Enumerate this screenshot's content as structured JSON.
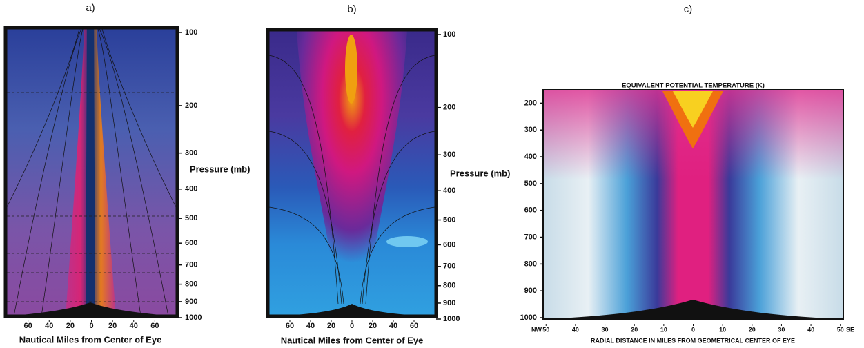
{
  "chart_data": [
    {
      "type": "contour",
      "panel_label": "a)",
      "x_label": "Nautical Miles from Center of Eye",
      "y_label": "Pressure (mb)",
      "xlim": [
        -80,
        80
      ],
      "xticks": [
        {
          "value": -60,
          "label": "60"
        },
        {
          "value": -40,
          "label": "40"
        },
        {
          "value": -20,
          "label": "20"
        },
        0,
        20,
        40,
        60
      ],
      "ylim": [
        1000,
        100
      ],
      "yticks": [
        100,
        200,
        300,
        400,
        500,
        600,
        700,
        800,
        900,
        1000
      ]
    },
    {
      "type": "contour",
      "panel_label": "b)",
      "x_label": "Nautical Miles from Center of Eye",
      "y_label": "Pressure (mb)",
      "xlim": [
        -80,
        80
      ],
      "xticks": [
        {
          "value": -60,
          "label": "60"
        },
        {
          "value": -40,
          "label": "40"
        },
        {
          "value": -20,
          "label": "20"
        },
        0,
        20,
        40,
        60
      ],
      "ylim": [
        1000,
        100
      ],
      "yticks": [
        100,
        200,
        300,
        400,
        500,
        600,
        700,
        800,
        900,
        1000
      ]
    },
    {
      "type": "contour",
      "panel_label": "c)",
      "title": "EQUIVALENT POTENTIAL TEMPERATURE (K)",
      "x_label": "RADIAL DISTANCE IN MILES FROM GEOMETRICAL CENTER OF EYE",
      "x_end_labels": [
        "NW",
        "SE"
      ],
      "xlim": [
        -51,
        51
      ],
      "xticks": [
        {
          "value": -50,
          "label": "50"
        },
        {
          "value": -40,
          "label": "40"
        },
        {
          "value": -30,
          "label": "30"
        },
        {
          "value": -20,
          "label": "20"
        },
        {
          "value": -10,
          "label": "10"
        },
        0,
        10,
        20,
        30,
        40,
        50
      ],
      "ylim": [
        1000,
        150
      ],
      "yticks": [
        200,
        300,
        400,
        500,
        600,
        700,
        800,
        900,
        1000
      ]
    }
  ]
}
